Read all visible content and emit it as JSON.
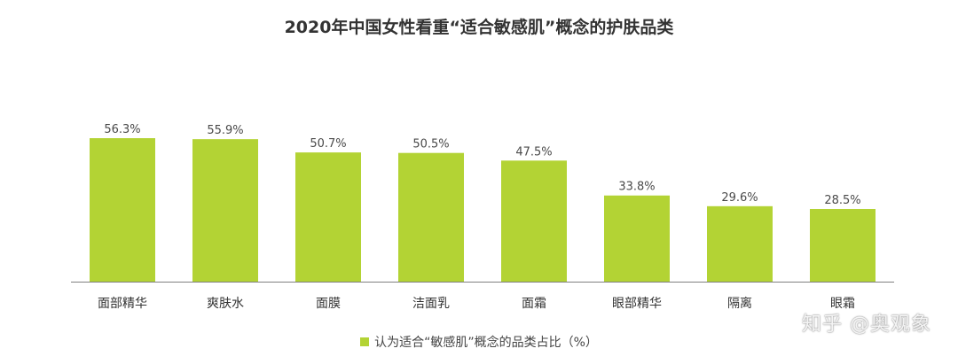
{
  "chart_data": {
    "type": "bar",
    "title": "2020年中国女性看重“适合敏感肌”概念的护肤品类",
    "categories": [
      "面部精华",
      "爽肤水",
      "面膜",
      "洁面乳",
      "面霜",
      "眼部精华",
      "隔离",
      "眼霜"
    ],
    "values": [
      56.3,
      55.9,
      50.7,
      50.5,
      47.5,
      33.8,
      29.6,
      28.5
    ],
    "value_labels": [
      "56.3%",
      "55.9%",
      "50.7%",
      "50.5%",
      "47.5%",
      "33.8%",
      "29.6%",
      "28.5%"
    ],
    "series": [
      {
        "name": "认为适合“敏感肌”概念的品类占比（%）"
      }
    ],
    "xlabel": "",
    "ylabel": "",
    "ylim": [
      0,
      60
    ],
    "grid": false,
    "legend_position": "bottom",
    "bar_color": "#b3d334",
    "axis_color": "#7f7f7f"
  },
  "watermark": "知乎 @奥观象"
}
